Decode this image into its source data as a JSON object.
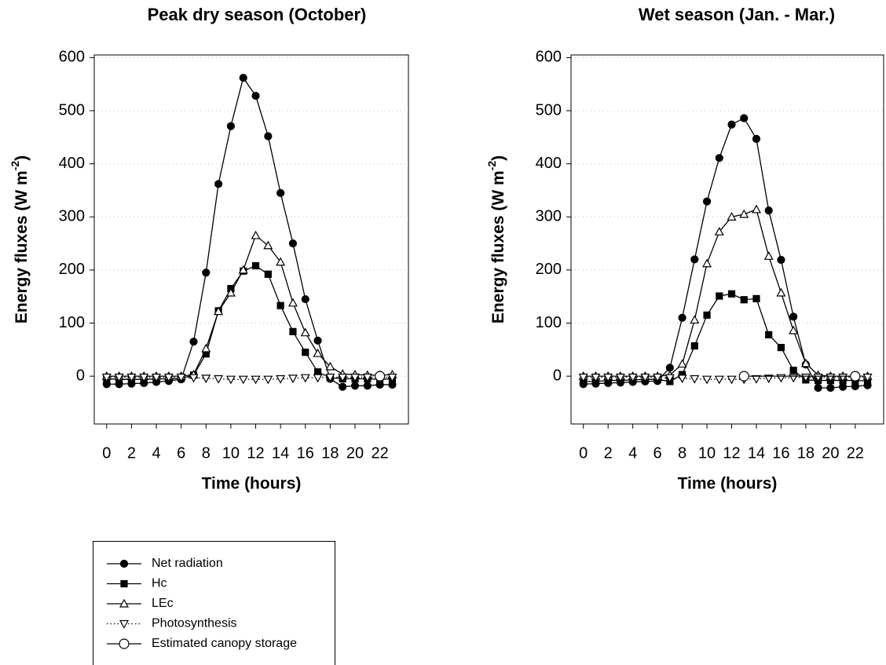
{
  "chart_data": [
    {
      "type": "line",
      "title": "Peak dry season (October)",
      "xlabel": "Time (hours)",
      "ylabel": {
        "text": "Energy fluxes (W m",
        "superscript": "-2",
        "suffix": ")"
      },
      "x": [
        0,
        1,
        2,
        3,
        4,
        5,
        6,
        7,
        8,
        9,
        10,
        11,
        12,
        13,
        14,
        15,
        16,
        17,
        18,
        19,
        20,
        21,
        22,
        23
      ],
      "xlim": [
        -1,
        24.3
      ],
      "xticks": [
        0,
        2,
        4,
        6,
        8,
        10,
        12,
        14,
        16,
        18,
        20,
        22
      ],
      "ylim": [
        -90,
        605
      ],
      "yticks": [
        0,
        100,
        200,
        300,
        400,
        500,
        600
      ],
      "grid": true,
      "series": [
        {
          "name": "Net radiation",
          "color": "#000000",
          "marker": "circle",
          "filled": true,
          "line": "solid",
          "values": [
            -15,
            -15,
            -14,
            -13,
            -11,
            -9,
            -6,
            65,
            195,
            362,
            471,
            562,
            528,
            452,
            345,
            250,
            145,
            67,
            -5,
            -20,
            -18,
            -18,
            -16,
            -16
          ]
        },
        {
          "name": "Hc",
          "color": "#000000",
          "marker": "square",
          "filled": true,
          "line": "solid",
          "values": [
            -5,
            -6,
            -6,
            -6,
            -5,
            -5,
            -4,
            2,
            42,
            123,
            165,
            198,
            208,
            192,
            133,
            84,
            45,
            8,
            -3,
            -5,
            -5,
            -5,
            -6,
            -5
          ]
        },
        {
          "name": "LEc",
          "color": "#000000",
          "marker": "triangle-up",
          "filled": false,
          "line": "solid",
          "values": [
            0,
            0,
            0,
            0,
            0,
            0,
            0,
            3,
            52,
            122,
            157,
            200,
            265,
            246,
            215,
            138,
            82,
            43,
            18,
            4,
            3,
            2,
            2,
            3
          ]
        },
        {
          "name": "Photosynthesis",
          "color": "#000000",
          "marker": "triangle-down",
          "filled": false,
          "line": "dotted",
          "values": [
            -2,
            -2,
            -2,
            -2,
            -2,
            -2,
            -2,
            -3,
            -4,
            -5,
            -6,
            -6,
            -6,
            -6,
            -5,
            -4,
            -3,
            -3,
            -2,
            -2,
            -2,
            -2,
            -2,
            -2
          ]
        },
        {
          "name": "Estimated canopy storage",
          "color": "#000000",
          "marker": "circle-large",
          "filled": false,
          "line": "solid",
          "x": [
            22
          ],
          "values": [
            0
          ]
        }
      ]
    },
    {
      "type": "line",
      "title": "Wet season (Jan. - Mar.)",
      "xlabel": "Time (hours)",
      "ylabel": {
        "text": "Energy fluxes (W m",
        "superscript": "-2",
        "suffix": ")"
      },
      "x": [
        0,
        1,
        2,
        3,
        4,
        5,
        6,
        7,
        8,
        9,
        10,
        11,
        12,
        13,
        14,
        15,
        16,
        17,
        18,
        19,
        20,
        21,
        22,
        23
      ],
      "xlim": [
        -1,
        24.3
      ],
      "xticks": [
        0,
        2,
        4,
        6,
        8,
        10,
        12,
        14,
        16,
        18,
        20,
        22
      ],
      "ylim": [
        -90,
        605
      ],
      "yticks": [
        0,
        100,
        200,
        300,
        400,
        500,
        600
      ],
      "grid": true,
      "series": [
        {
          "color": "#000000",
          "marker": "circle",
          "filled": true,
          "line": "solid",
          "values": [
            -15,
            -14,
            -13,
            -12,
            -11,
            -10,
            -9,
            16,
            110,
            220,
            329,
            411,
            474,
            486,
            447,
            312,
            219,
            112,
            22,
            -22,
            -22,
            -20,
            -19,
            -17
          ]
        },
        {
          "color": "#000000",
          "marker": "square",
          "filled": true,
          "line": "solid",
          "values": [
            -10,
            -10,
            -8,
            -8,
            -7,
            -6,
            -6,
            -10,
            3,
            57,
            115,
            151,
            155,
            144,
            146,
            78,
            54,
            11,
            -7,
            -8,
            -8,
            -8,
            -8,
            -9
          ]
        },
        {
          "color": "#000000",
          "marker": "triangle-up",
          "filled": false,
          "line": "solid",
          "values": [
            0,
            0,
            0,
            0,
            0,
            0,
            0,
            2,
            23,
            106,
            212,
            272,
            300,
            305,
            314,
            226,
            157,
            86,
            24,
            2,
            0,
            0,
            0,
            0
          ]
        },
        {
          "color": "#000000",
          "marker": "triangle-down",
          "filled": false,
          "line": "dotted",
          "values": [
            -2,
            -2,
            -2,
            -2,
            -2,
            -2,
            -2,
            -3,
            -4,
            -5,
            -6,
            -6,
            -6,
            -6,
            -5,
            -4,
            -3,
            -3,
            -2,
            -2,
            -2,
            -2,
            -2,
            -2
          ]
        },
        {
          "color": "#000000",
          "marker": "circle-large",
          "filled": false,
          "line": "solid",
          "x": [
            13,
            22
          ],
          "values": [
            0,
            0
          ]
        }
      ]
    }
  ]
}
